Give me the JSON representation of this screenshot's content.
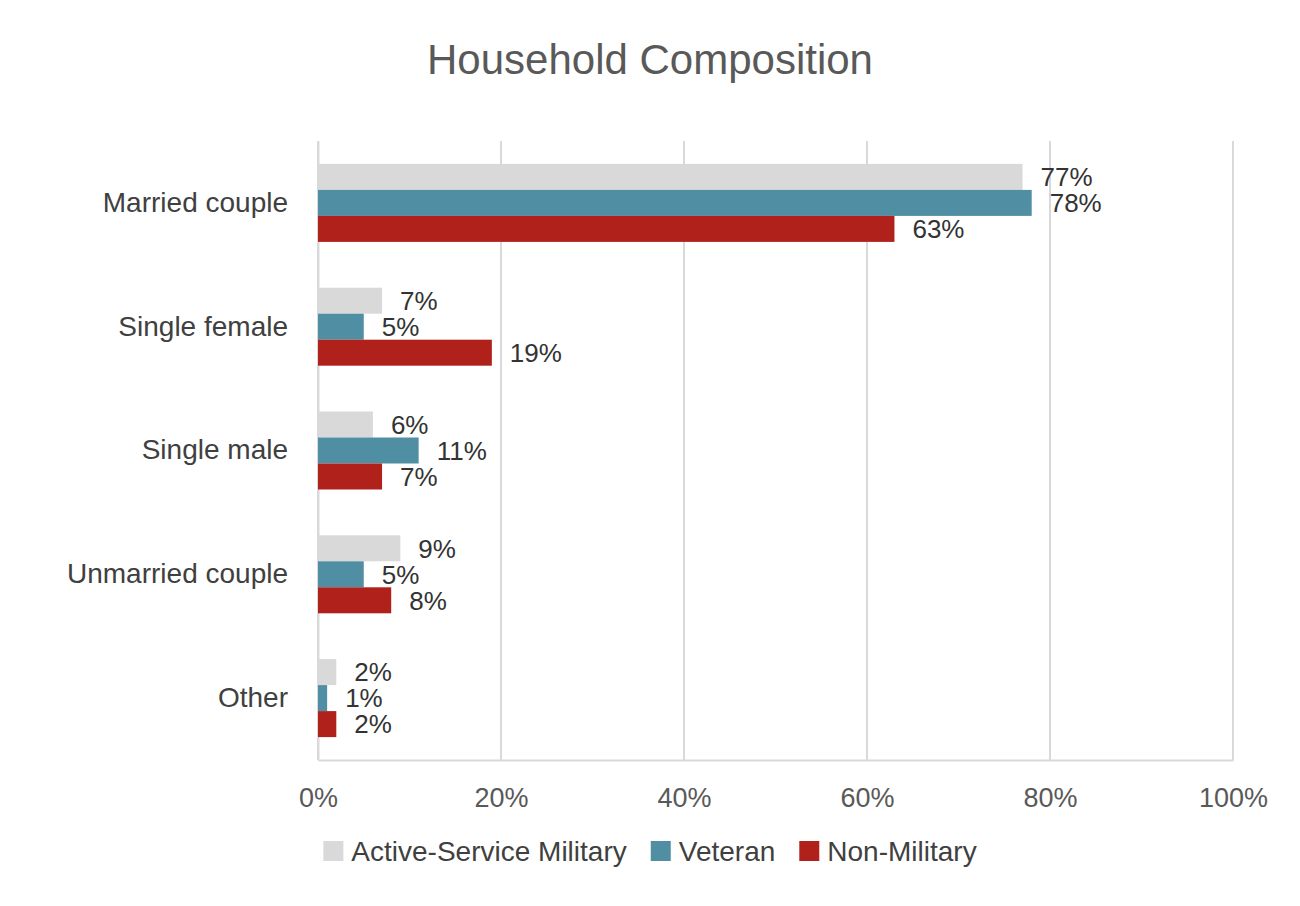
{
  "chart_data": {
    "type": "bar",
    "title": "Household Composition",
    "orientation": "horizontal",
    "categories": [
      "Married couple",
      "Single female",
      "Single male",
      "Unmarried couple",
      "Other"
    ],
    "series": [
      {
        "name": "Active-Service Military",
        "color": "#d9d9d9",
        "values": [
          77,
          7,
          6,
          9,
          2
        ],
        "value_labels": [
          "77%",
          "7%",
          "6%",
          "9%",
          "2%"
        ]
      },
      {
        "name": "Veteran",
        "color": "#508ea4",
        "values": [
          78,
          5,
          11,
          5,
          1
        ],
        "value_labels": [
          "78%",
          "5%",
          "11%",
          "5%",
          "1%"
        ]
      },
      {
        "name": "Non-Military",
        "color": "#b0211c",
        "values": [
          63,
          19,
          7,
          8,
          2
        ],
        "value_labels": [
          "63%",
          "19%",
          "7%",
          "8%",
          "2%"
        ]
      }
    ],
    "xlim": [
      0,
      100
    ],
    "xticks": [
      {
        "value": 0,
        "label": "0%"
      },
      {
        "value": 20,
        "label": "20%"
      },
      {
        "value": 40,
        "label": "40%"
      },
      {
        "value": 60,
        "label": "60%"
      },
      {
        "value": 80,
        "label": "80%"
      },
      {
        "value": 100,
        "label": "100%"
      }
    ],
    "grid": true,
    "data_labels": true,
    "legend": "bottom"
  }
}
